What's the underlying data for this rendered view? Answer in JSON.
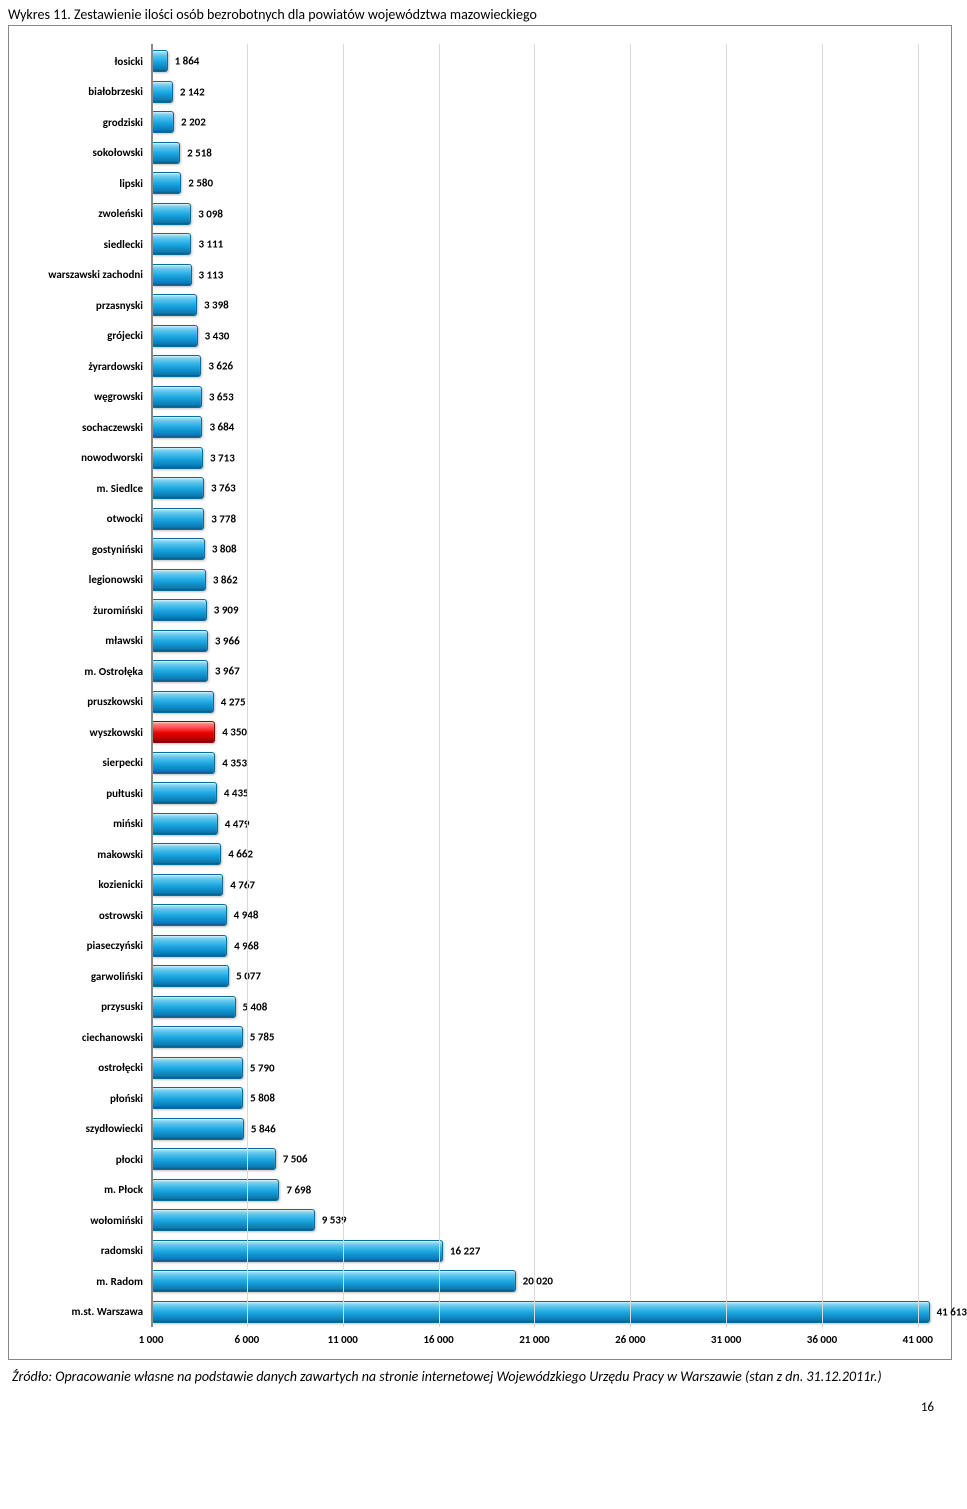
{
  "title": "Wykres 11. Zestawienie ilości osób bezrobotnych dla powiatów województwa mazowieckiego",
  "source_note": "Źródło: Opracowanie własne na podstawie danych zawartych na stronie internetowej Wojewódzkiego Urzędu Pracy w Warszawie (stan z dn. 31.12.2011r.)",
  "page_number": "16",
  "chart": {
    "type": "bar-horizontal",
    "x_min": 1000,
    "x_max": 42000,
    "x_ticks": [
      1000,
      6000,
      11000,
      16000,
      21000,
      26000,
      31000,
      36000,
      41000
    ],
    "x_tick_labels": [
      "1 000",
      "6 000",
      "11 000",
      "16 000",
      "21 000",
      "26 000",
      "31 000",
      "36 000",
      "41 000"
    ],
    "grid_color": "#d9d9d9",
    "axis_color": "#888888",
    "bar_default_color": "#1fa9e2",
    "bar_highlight_color": "#e80000",
    "label_fontsize": 11,
    "bars": [
      {
        "label": "łosicki",
        "value": 1864,
        "value_label": "1 864",
        "highlight": false
      },
      {
        "label": "białobrzeski",
        "value": 2142,
        "value_label": "2 142",
        "highlight": false
      },
      {
        "label": "grodziski",
        "value": 2202,
        "value_label": "2 202",
        "highlight": false
      },
      {
        "label": "sokołowski",
        "value": 2518,
        "value_label": "2 518",
        "highlight": false
      },
      {
        "label": "lipski",
        "value": 2580,
        "value_label": "2 580",
        "highlight": false
      },
      {
        "label": "zwoleński",
        "value": 3098,
        "value_label": "3 098",
        "highlight": false
      },
      {
        "label": "siedlecki",
        "value": 3111,
        "value_label": "3 111",
        "highlight": false
      },
      {
        "label": "warszawski zachodni",
        "value": 3113,
        "value_label": "3 113",
        "highlight": false
      },
      {
        "label": "przasnyski",
        "value": 3398,
        "value_label": "3 398",
        "highlight": false
      },
      {
        "label": "grójecki",
        "value": 3430,
        "value_label": "3 430",
        "highlight": false
      },
      {
        "label": "żyrardowski",
        "value": 3626,
        "value_label": "3 626",
        "highlight": false
      },
      {
        "label": "węgrowski",
        "value": 3653,
        "value_label": "3 653",
        "highlight": false
      },
      {
        "label": "sochaczewski",
        "value": 3684,
        "value_label": "3 684",
        "highlight": false
      },
      {
        "label": "nowodworski",
        "value": 3713,
        "value_label": "3 713",
        "highlight": false
      },
      {
        "label": "m. Siedlce",
        "value": 3763,
        "value_label": "3 763",
        "highlight": false
      },
      {
        "label": "otwocki",
        "value": 3778,
        "value_label": "3 778",
        "highlight": false
      },
      {
        "label": "gostyniński",
        "value": 3808,
        "value_label": "3 808",
        "highlight": false
      },
      {
        "label": "legionowski",
        "value": 3862,
        "value_label": "3 862",
        "highlight": false
      },
      {
        "label": "żuromiński",
        "value": 3909,
        "value_label": "3 909",
        "highlight": false
      },
      {
        "label": "mławski",
        "value": 3966,
        "value_label": "3 966",
        "highlight": false
      },
      {
        "label": "m. Ostrołęka",
        "value": 3967,
        "value_label": "3 967",
        "highlight": false
      },
      {
        "label": "pruszkowski",
        "value": 4275,
        "value_label": "4 275",
        "highlight": false
      },
      {
        "label": "wyszkowski",
        "value": 4350,
        "value_label": "4 350",
        "highlight": true
      },
      {
        "label": "sierpecki",
        "value": 4353,
        "value_label": "4 353",
        "highlight": false
      },
      {
        "label": "pułtuski",
        "value": 4435,
        "value_label": "4 435",
        "highlight": false
      },
      {
        "label": "miński",
        "value": 4479,
        "value_label": "4 479",
        "highlight": false
      },
      {
        "label": "makowski",
        "value": 4662,
        "value_label": "4 662",
        "highlight": false
      },
      {
        "label": "kozienicki",
        "value": 4767,
        "value_label": "4 767",
        "highlight": false
      },
      {
        "label": "ostrowski",
        "value": 4948,
        "value_label": "4 948",
        "highlight": false
      },
      {
        "label": "piaseczyński",
        "value": 4968,
        "value_label": "4 968",
        "highlight": false
      },
      {
        "label": "garwoliński",
        "value": 5077,
        "value_label": "5 077",
        "highlight": false
      },
      {
        "label": "przysuski",
        "value": 5408,
        "value_label": "5 408",
        "highlight": false
      },
      {
        "label": "ciechanowski",
        "value": 5785,
        "value_label": "5 785",
        "highlight": false
      },
      {
        "label": "ostrołęcki",
        "value": 5790,
        "value_label": "5 790",
        "highlight": false
      },
      {
        "label": "płoński",
        "value": 5808,
        "value_label": "5 808",
        "highlight": false
      },
      {
        "label": "szydłowiecki",
        "value": 5846,
        "value_label": "5 846",
        "highlight": false
      },
      {
        "label": "płocki",
        "value": 7506,
        "value_label": "7 506",
        "highlight": false
      },
      {
        "label": "m. Płock",
        "value": 7698,
        "value_label": "7 698",
        "highlight": false
      },
      {
        "label": "wołomiński",
        "value": 9539,
        "value_label": "9 539",
        "highlight": false
      },
      {
        "label": "radomski",
        "value": 16227,
        "value_label": "16 227",
        "highlight": false
      },
      {
        "label": "m. Radom",
        "value": 20020,
        "value_label": "20 020",
        "highlight": false
      },
      {
        "label": "m.st. Warszawa",
        "value": 41613,
        "value_label": "41 613",
        "highlight": false
      }
    ]
  }
}
